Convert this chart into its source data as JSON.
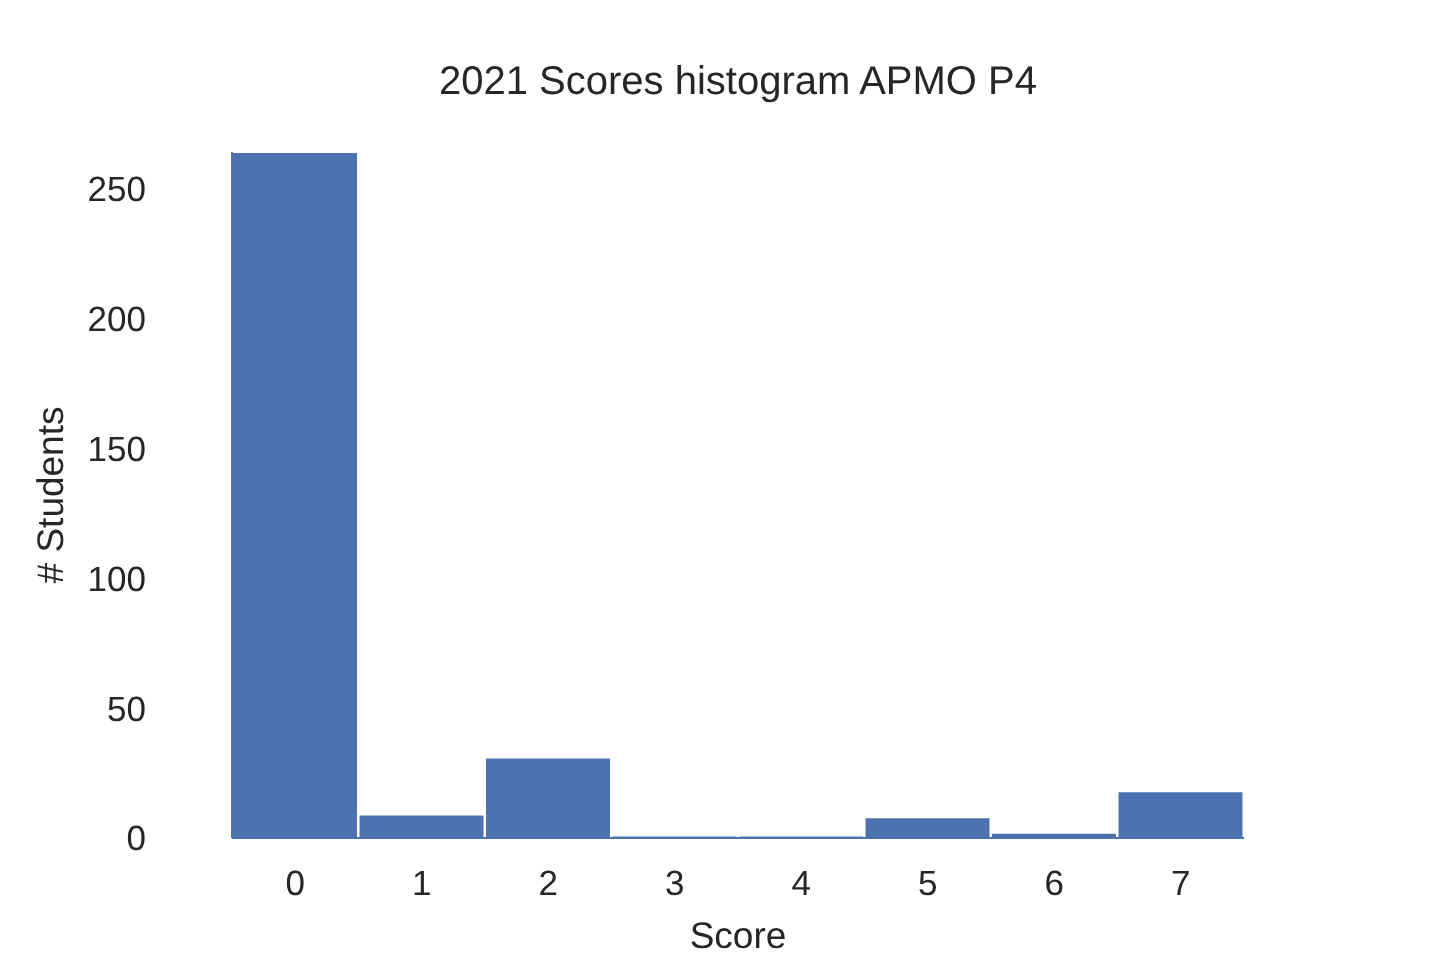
{
  "chart_data": {
    "type": "histogram",
    "title": "2021 Scores histogram APMO P4",
    "xlabel": "Score",
    "ylabel": "# Students",
    "bins": [
      -0.5,
      0.5,
      1.5,
      2.5,
      3.5,
      4.5,
      5.5,
      6.5,
      7.5
    ],
    "values": [
      264,
      9,
      31,
      1,
      1,
      8,
      2,
      18
    ],
    "color": "#4c72b0",
    "xlim": [
      -0.5,
      7.5
    ],
    "xticks": [
      0,
      1,
      2,
      3,
      4,
      5,
      6,
      7
    ],
    "ylim": [
      0,
      264
    ],
    "yticks": [
      0,
      50,
      100,
      150,
      200,
      250
    ]
  }
}
